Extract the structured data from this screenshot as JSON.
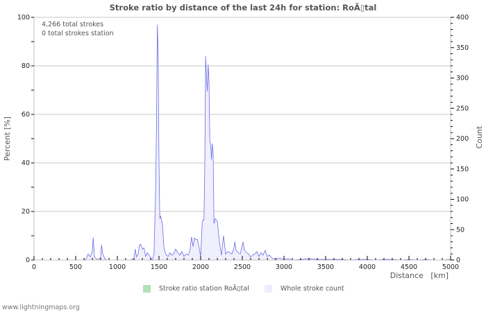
{
  "chart_data": {
    "type": "area",
    "title": "Stroke ratio by distance of the last 24h for station: RoÃ\u0000tal",
    "title_display": "Stroke ratio by distance of the last 24h for station: RoÃ▯tal",
    "xlabel": "Distance   [km]",
    "ylabel_left": "Percent   [%]",
    "ylabel_right": "Count",
    "xlim": [
      0,
      5000
    ],
    "ylim_left": [
      0,
      100
    ],
    "ylim_right": [
      0,
      400
    ],
    "x_ticks": [
      0,
      500,
      1000,
      1500,
      2000,
      2500,
      3000,
      3500,
      4000,
      4500,
      5000
    ],
    "y_ticks_left": [
      0,
      20,
      40,
      60,
      80,
      100
    ],
    "y_ticks_right": [
      0,
      50,
      100,
      150,
      200,
      250,
      300,
      350,
      400
    ],
    "grid": true,
    "legend_position": "bottom",
    "annotations": [
      "4,266 total strokes",
      "0 total strokes station"
    ],
    "series": [
      {
        "name": "Stroke ratio station RoÃ▯tal",
        "axis": "left",
        "color": "#b3e0b3",
        "x": [],
        "values": []
      },
      {
        "name": "Whole stroke count",
        "axis": "right",
        "color": "#6a6ae8",
        "fill": "#f0f0fc",
        "x": [
          0,
          600,
          625,
          650,
          675,
          700,
          710,
          725,
          750,
          775,
          800,
          810,
          825,
          850,
          875,
          1000,
          1150,
          1200,
          1215,
          1230,
          1250,
          1265,
          1280,
          1300,
          1320,
          1340,
          1360,
          1380,
          1400,
          1420,
          1440,
          1450,
          1460,
          1470,
          1480,
          1490,
          1500,
          1510,
          1520,
          1540,
          1560,
          1575,
          1590,
          1610,
          1630,
          1650,
          1675,
          1700,
          1725,
          1750,
          1775,
          1800,
          1825,
          1850,
          1870,
          1890,
          1910,
          1925,
          1940,
          1960,
          1980,
          2000,
          2010,
          2020,
          2030,
          2040,
          2050,
          2060,
          2070,
          2080,
          2090,
          2100,
          2110,
          2120,
          2130,
          2140,
          2150,
          2160,
          2175,
          2200,
          2225,
          2250,
          2275,
          2300,
          2325,
          2350,
          2375,
          2400,
          2410,
          2425,
          2450,
          2475,
          2500,
          2510,
          2525,
          2550,
          2575,
          2600,
          2625,
          2650,
          2675,
          2700,
          2725,
          2750,
          2775,
          2800,
          2825,
          2850,
          2875,
          2900,
          2950,
          3000,
          3050,
          3100,
          3200,
          3300,
          3400,
          3500,
          3600,
          3700,
          3800,
          3900,
          4000,
          4100,
          4200,
          4300,
          4400,
          4500,
          4600,
          4700,
          4800,
          4900,
          5000
        ],
        "values": [
          0,
          0,
          2,
          10,
          5,
          15,
          37,
          5,
          2,
          1,
          4,
          25,
          10,
          2,
          0,
          0,
          0,
          2,
          18,
          5,
          10,
          25,
          26,
          18,
          20,
          6,
          12,
          8,
          4,
          0,
          10,
          60,
          120,
          220,
          388,
          340,
          160,
          68,
          72,
          60,
          20,
          12,
          8,
          6,
          12,
          8,
          10,
          18,
          12,
          8,
          14,
          6,
          10,
          8,
          14,
          38,
          22,
          36,
          34,
          34,
          22,
          6,
          36,
          64,
          66,
          66,
          160,
          336,
          300,
          278,
          322,
          296,
          198,
          190,
          166,
          192,
          176,
          60,
          68,
          64,
          30,
          8,
          40,
          10,
          14,
          12,
          10,
          20,
          30,
          16,
          12,
          10,
          24,
          30,
          16,
          12,
          10,
          5,
          8,
          10,
          14,
          6,
          12,
          8,
          16,
          6,
          8,
          4,
          2,
          2,
          3,
          1,
          2,
          0,
          1,
          2,
          1,
          1,
          1,
          1,
          0,
          1,
          1,
          0,
          1,
          1,
          0,
          1,
          0,
          1,
          0,
          0,
          1
        ]
      }
    ]
  },
  "title": "Stroke ratio by distance of the last 24h for station: RoÃ▯tal",
  "info": {
    "total_strokes": "4,266 total strokes",
    "total_strokes_station": "0 total strokes station"
  },
  "axes": {
    "xlabel": "Distance   [km]",
    "ylabel_left": "Percent   [%]",
    "ylabel_right": "Count"
  },
  "legend": {
    "items": [
      {
        "label": "Stroke ratio station RoÃ▯tal",
        "color": "#b3e0b3"
      },
      {
        "label": "Whole stroke count",
        "color": "#eeeefb"
      }
    ]
  },
  "credit": "www.lightningmaps.org",
  "colors": {
    "grid": "#c8c8c8",
    "axis": "#c0c0c0",
    "line": "#6a6ae8",
    "fill": "#f0f0fc"
  }
}
